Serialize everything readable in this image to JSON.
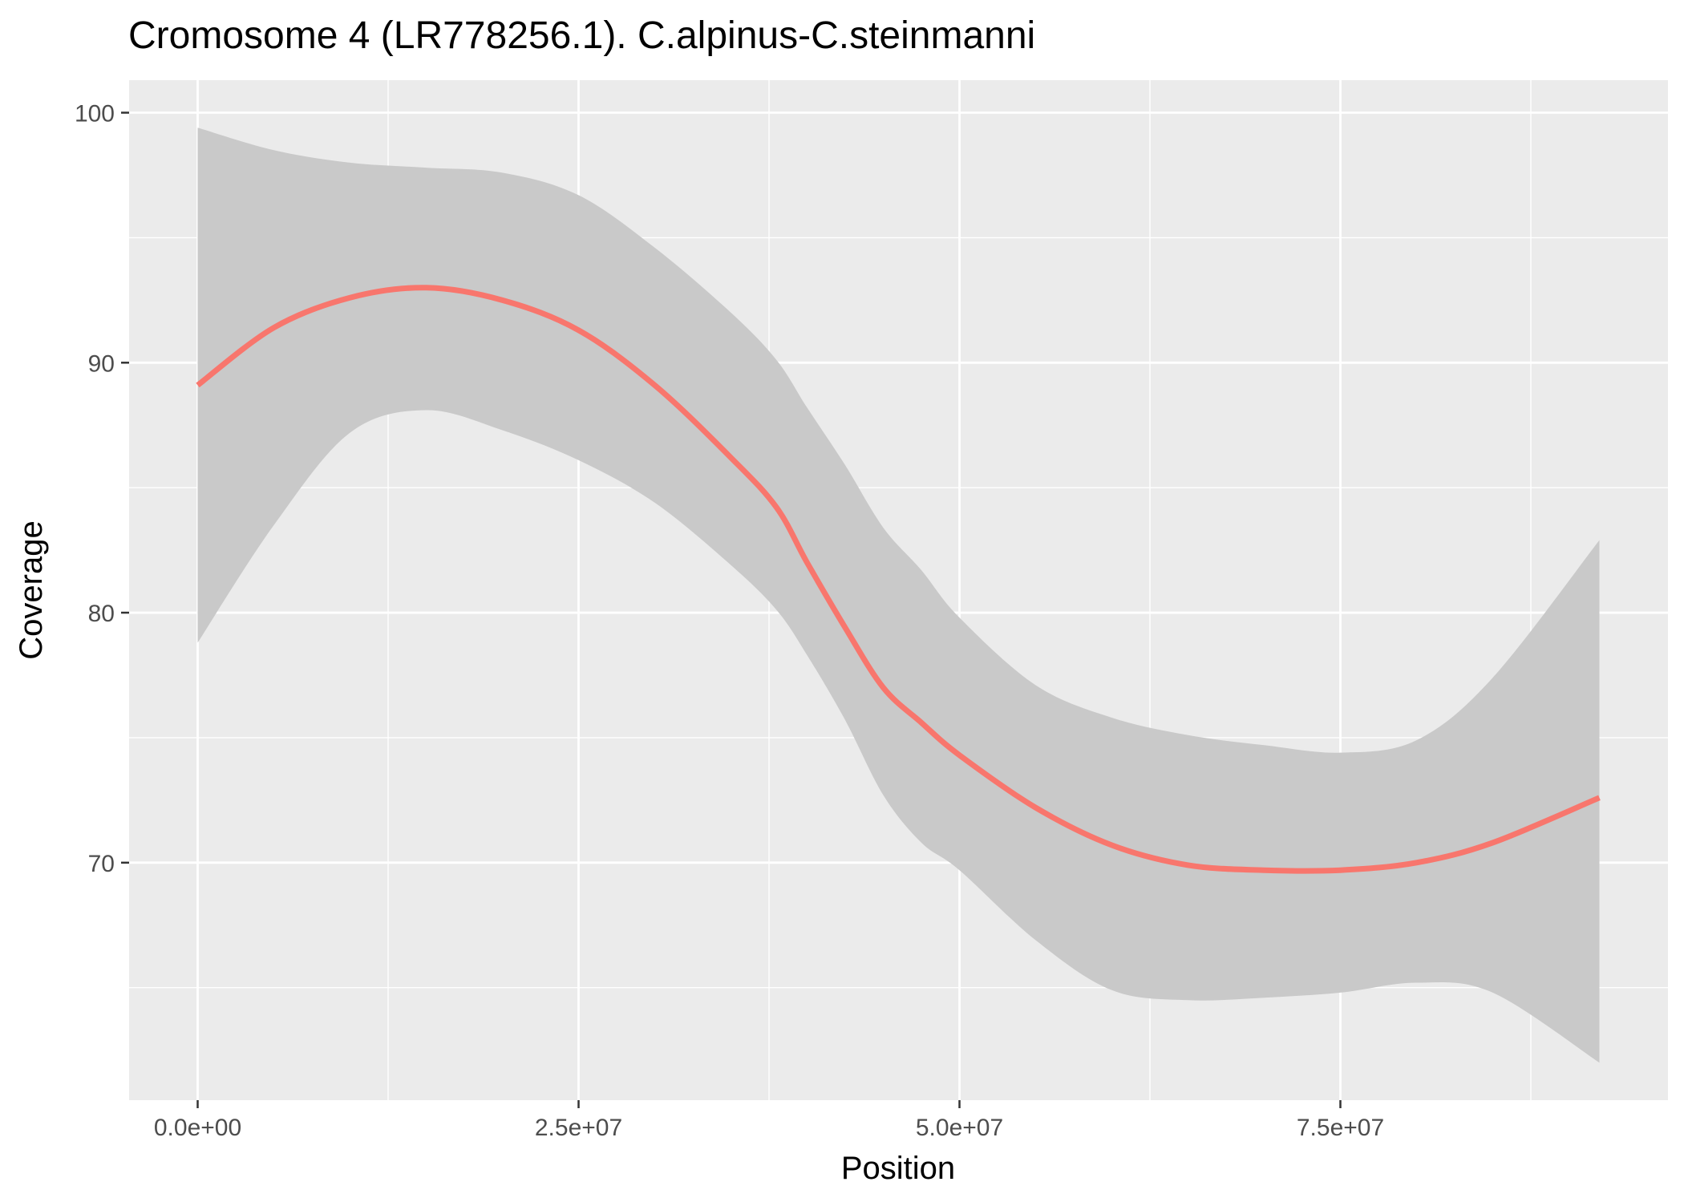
{
  "chart_data": {
    "type": "line",
    "title": "Cromosome 4 (LR778256.1). C.alpinus-C.steinmanni",
    "xlabel": "Position",
    "ylabel": "Coverage",
    "xlim": [
      -4500000,
      96500000
    ],
    "ylim": [
      60.5,
      101.3
    ],
    "x_ticks": [
      0,
      25000000,
      50000000,
      75000000
    ],
    "x_tick_labels": [
      "0.0e+00",
      "2.5e+07",
      "5.0e+07",
      "7.5e+07"
    ],
    "y_ticks": [
      70,
      80,
      90,
      100
    ],
    "y_tick_labels": [
      "70",
      "80",
      "90",
      "100"
    ],
    "grid": true,
    "legend": "none",
    "colors": {
      "panel": "#ebebeb",
      "grid": "#ffffff",
      "ribbon": "#c9c9c9",
      "line": "#f8766d"
    },
    "series": [
      {
        "x": [
          0,
          5000000,
          10000000,
          15000000,
          20000000,
          25000000,
          30000000,
          35000000,
          38000000,
          40000000,
          42500000,
          45000000,
          47500000,
          50000000,
          55000000,
          60000000,
          65000000,
          70000000,
          75000000,
          80000000,
          85000000,
          92000000
        ],
        "y": [
          89.1,
          91.4,
          92.6,
          93.0,
          92.5,
          91.3,
          89.1,
          86.2,
          84.2,
          82.0,
          79.4,
          77.0,
          75.6,
          74.3,
          72.2,
          70.7,
          69.9,
          69.7,
          69.7,
          70.0,
          70.8,
          72.6
        ],
        "lower": [
          78.8,
          83.5,
          87.2,
          88.1,
          87.3,
          86.1,
          84.4,
          81.9,
          80.1,
          78.3,
          75.7,
          72.7,
          70.8,
          69.7,
          66.9,
          64.9,
          64.5,
          64.6,
          64.8,
          65.2,
          64.8,
          62.0
        ],
        "upper": [
          99.4,
          98.5,
          98.0,
          97.8,
          97.6,
          96.7,
          94.6,
          92.0,
          90.1,
          88.2,
          85.9,
          83.4,
          81.7,
          79.8,
          77.1,
          75.8,
          75.1,
          74.7,
          74.4,
          74.9,
          77.4,
          82.9
        ]
      }
    ]
  }
}
